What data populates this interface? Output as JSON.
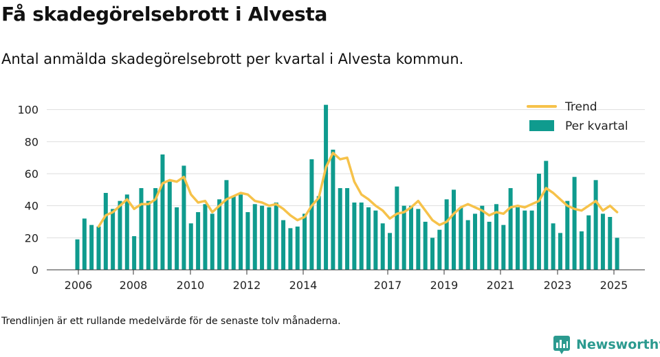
{
  "title": "Få skadegörelsebrott i Alvesta",
  "subtitle": "Antal anmälda skadegörelsebrott per kvartal i Alvesta kommun.",
  "note": "Trendlinjen är ett rullande medelvärde för de senaste tolv månaderna.",
  "brand": {
    "name": "Newsworthy",
    "icon": "bar-chart-logo-icon"
  },
  "colors": {
    "bars": "#0f9b8e",
    "trend": "#f6c24a",
    "brand": "#2b9a8f",
    "grid": "#dddddd"
  },
  "chart_data": {
    "type": "bar",
    "x_tick_labels": [
      "2006",
      "2008",
      "2010",
      "2012",
      "2014",
      "2017",
      "2019",
      "2021",
      "2023",
      "2025"
    ],
    "y_ticks": [
      0,
      20,
      40,
      60,
      80,
      100
    ],
    "ylim": [
      0,
      105
    ],
    "grid": true,
    "legend_position": "top-right",
    "legend": [
      "Trend",
      "Per kvartal"
    ],
    "series": [
      {
        "name": "Per kvartal",
        "type": "bar",
        "values": [
          19,
          32,
          28,
          27,
          48,
          38,
          43,
          47,
          21,
          51,
          43,
          51,
          72,
          55,
          39,
          65,
          29,
          36,
          41,
          35,
          44,
          56,
          46,
          47,
          36,
          41,
          40,
          39,
          42,
          31,
          26,
          27,
          35,
          69,
          46,
          103,
          75,
          51,
          51,
          42,
          42,
          39,
          37,
          29,
          23,
          52,
          40,
          40,
          38,
          30,
          20,
          25,
          44,
          50,
          39,
          31,
          35,
          40,
          30,
          41,
          28,
          51,
          39,
          37,
          37,
          60,
          68,
          29,
          23,
          43,
          58,
          24,
          34,
          56,
          35,
          33,
          20
        ]
      },
      {
        "name": "Trend",
        "type": "line",
        "values": [
          null,
          null,
          null,
          27,
          34,
          36,
          40,
          44,
          38,
          41,
          41,
          44,
          54,
          56,
          55,
          58,
          47,
          42,
          43,
          36,
          40,
          44,
          46,
          48,
          47,
          43,
          42,
          40,
          41,
          38,
          34,
          31,
          33,
          40,
          45,
          64,
          73,
          69,
          70,
          55,
          47,
          44,
          40,
          37,
          32,
          35,
          36,
          39,
          43,
          37,
          31,
          28,
          30,
          35,
          39,
          41,
          39,
          37,
          34,
          36,
          35,
          39,
          40,
          39,
          41,
          43,
          51,
          48,
          44,
          40,
          38,
          37,
          40,
          43,
          37,
          40,
          36
        ]
      }
    ]
  }
}
